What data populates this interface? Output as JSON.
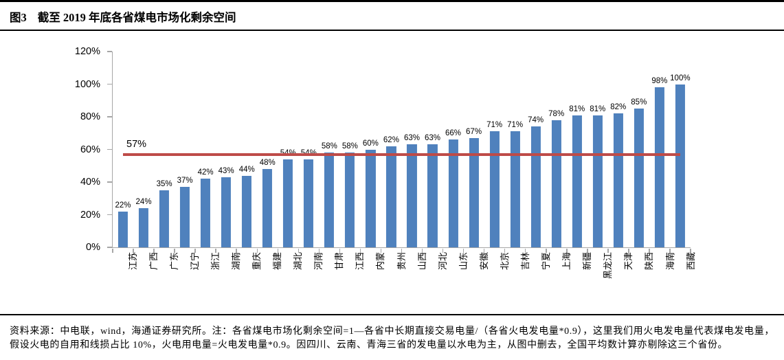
{
  "header": {
    "figure_label": "图3",
    "title": "截至 2019 年底各省煤电市场化剩余空间"
  },
  "chart_data": {
    "type": "bar",
    "title": "截至 2019 年底各省煤电市场化剩余空间",
    "categories": [
      "江苏",
      "广西",
      "广东",
      "辽宁",
      "浙江",
      "湖南",
      "重庆",
      "福建",
      "湖北",
      "河南",
      "甘肃",
      "江西",
      "内蒙",
      "贵州",
      "山西",
      "河北",
      "山东",
      "安徽",
      "北京",
      "吉林",
      "宁夏",
      "上海",
      "新疆",
      "黑龙江",
      "天津",
      "陕西",
      "海南",
      "西藏"
    ],
    "values": [
      22,
      24,
      35,
      37,
      42,
      43,
      44,
      48,
      54,
      54,
      58,
      58,
      60,
      62,
      63,
      63,
      66,
      67,
      71,
      71,
      74,
      78,
      81,
      81,
      82,
      85,
      98,
      100
    ],
    "value_labels": [
      "22%",
      "24%",
      "35%",
      "37%",
      "42%",
      "43%",
      "44%",
      "48%",
      "54%",
      "54%",
      "58%",
      "58%",
      "60%",
      "62%",
      "63%",
      "63%",
      "66%",
      "67%",
      "71%",
      "71%",
      "74%",
      "78%",
      "81%",
      "81%",
      "82%",
      "85%",
      "98%",
      "100%"
    ],
    "y_ticks": [
      "120%",
      "100%",
      "80%",
      "60%",
      "40%",
      "20%",
      "0%"
    ],
    "ylim": [
      0,
      120
    ],
    "xlabel": "",
    "ylabel": "",
    "grid": false,
    "legend": null,
    "bar_color": "#4f81bd",
    "axis_color": "#a6a6a6",
    "reference_line": {
      "value": 57,
      "label": "57%",
      "color": "#be4b48"
    }
  },
  "footnote": {
    "text": "资料来源：中电联，wind，海通证券研究所。注：各省煤电市场化剩余空间=1—各省中长期直接交易电量/（各省火电发电量*0.9），这里我们用火电发电量代表煤电发电量，假设火电的自用和线损占比 10%，火电用电量=火电发电量*0.9。因四川、云南、青海三省的发电量以水电为主，从图中删去，全国平均数计算亦剔除这三个省份。"
  }
}
